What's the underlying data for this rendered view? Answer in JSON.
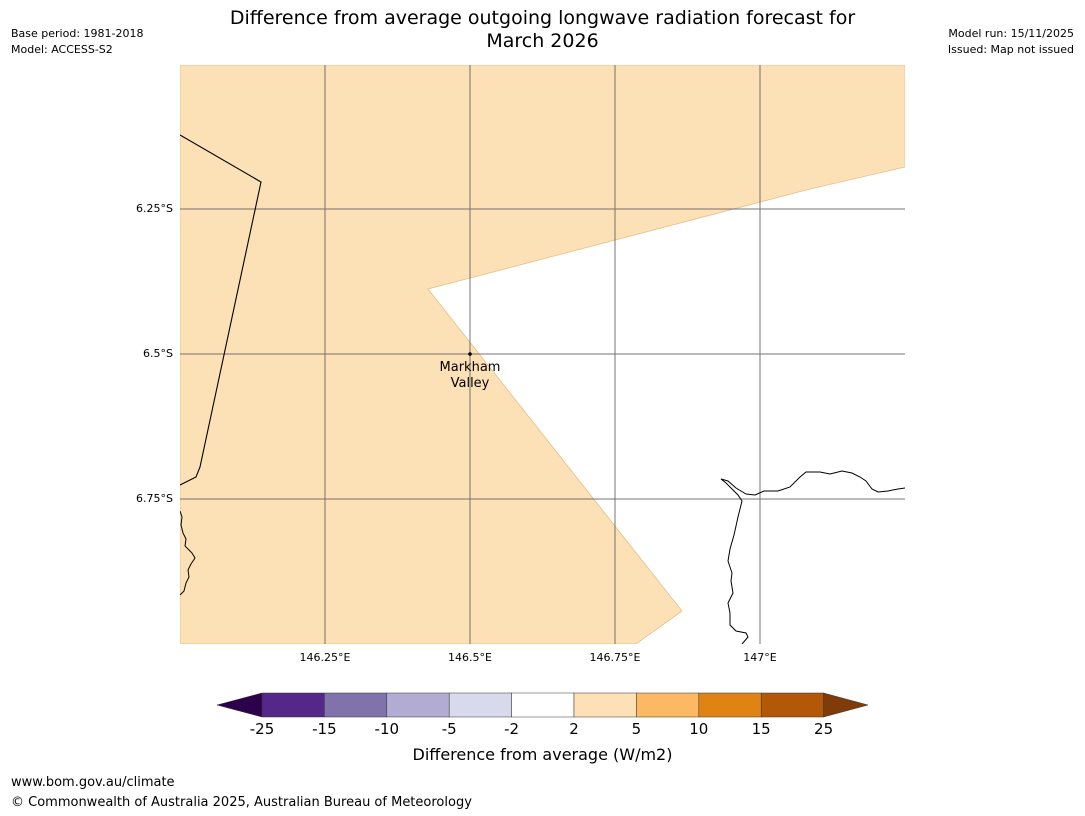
{
  "header": {
    "title_line1": "Difference from average outgoing longwave radiation forecast for",
    "title_line2": "March 2026",
    "base_period": "Base period: 1981-2018",
    "model": "Model: ACCESS-S2",
    "model_run": "Model run: 15/11/2025",
    "issued": "Issued: Map not issued"
  },
  "map": {
    "latitude_labels": [
      "6.25°S",
      "6.5°S",
      "6.75°S"
    ],
    "longitude_labels": [
      "146.25°E",
      "146.5°E",
      "146.75°E",
      "147°E"
    ],
    "place": {
      "name_line1": "Markham",
      "name_line2": "Valley"
    },
    "shaded_category": "2 to 5"
  },
  "colorbar": {
    "title": "Difference from average (W/m2)",
    "ticks": [
      "-25",
      "-15",
      "-10",
      "-5",
      "-2",
      "2",
      "5",
      "10",
      "15",
      "25"
    ],
    "colors": {
      "under": "#2d004b",
      "bins": [
        "#542788",
        "#8073ac",
        "#b2abd2",
        "#d8daeb",
        "#ffffff",
        "#fee0b6",
        "#fdb863",
        "#e08214",
        "#b35806"
      ],
      "over": "#7f3b08"
    }
  },
  "footer": {
    "url": "www.bom.gov.au/climate",
    "copyright": "© Commonwealth of Australia 2025, Australian Bureau of Meteorology"
  }
}
